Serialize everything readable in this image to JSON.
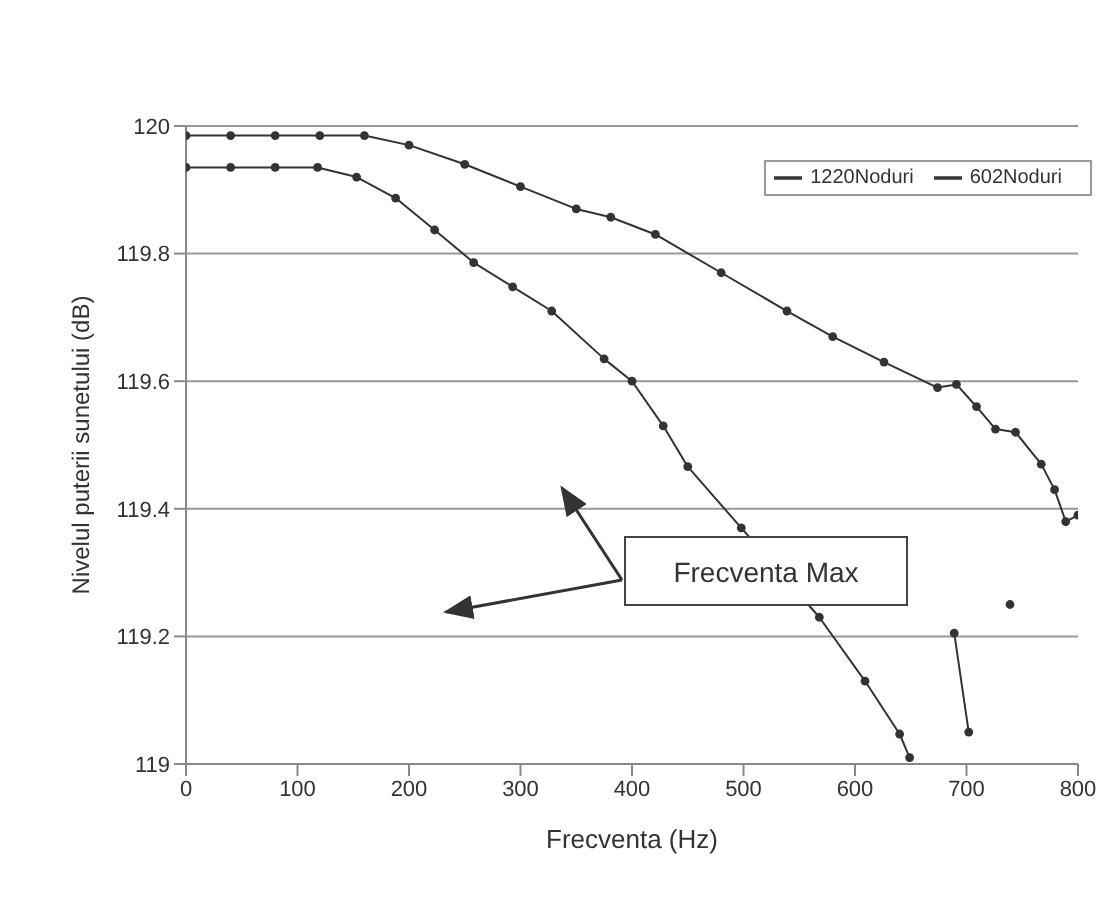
{
  "chart_data": {
    "type": "line",
    "xlabel": "Frecventa (Hz)",
    "ylabel": "Nivelul puterii sunetului (dB)",
    "series": [
      {
        "name": "1220Noduri",
        "color": "#333333",
        "x": [
          0,
          40,
          80,
          120,
          160,
          200,
          250,
          300,
          350,
          381,
          421,
          480,
          539,
          580,
          626,
          674,
          691,
          709,
          726,
          744,
          767,
          779,
          789,
          800
        ],
        "values": [
          119.985,
          119.985,
          119.985,
          119.985,
          119.985,
          119.97,
          119.94,
          119.905,
          119.87,
          119.857,
          119.83,
          119.77,
          119.71,
          119.67,
          119.63,
          119.59,
          119.595,
          119.56,
          119.525,
          119.52,
          119.47,
          119.43,
          119.38,
          119.39
        ]
      },
      {
        "name": "602Noduri",
        "color": "#333333",
        "x": [
          0,
          40,
          80,
          118,
          153,
          188,
          223,
          258,
          293,
          328,
          375,
          400,
          428,
          450,
          498,
          568,
          609,
          640,
          649,
          670,
          689,
          702,
          720,
          739
        ],
        "values": [
          119.935,
          119.935,
          119.935,
          119.935,
          119.92,
          119.887,
          119.837,
          119.786,
          119.748,
          119.71,
          119.635,
          119.6,
          119.53,
          119.466,
          119.37,
          119.23,
          119.13,
          119.047,
          119.01,
          null,
          119.205,
          119.05,
          null,
          119.25
        ]
      }
    ],
    "xlim": [
      0,
      800
    ],
    "xticks": [
      0,
      100,
      200,
      300,
      400,
      500,
      600,
      700,
      800
    ],
    "ylim": [
      119,
      120
    ],
    "yticks": [
      119,
      119.2,
      119.4,
      119.6,
      119.8,
      120
    ],
    "grid": "y",
    "legend": "top right",
    "marker": "circle",
    "line_style": "solid",
    "annotations": [
      "Frecventa Max"
    ]
  }
}
